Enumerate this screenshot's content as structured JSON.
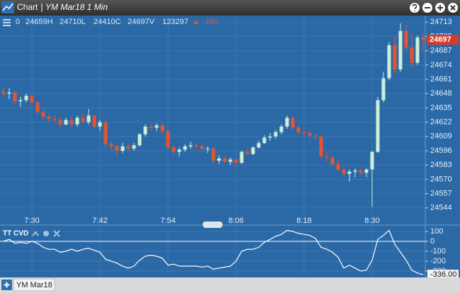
{
  "window_title": "Chart",
  "instrument": "YM Mar18 1 Min",
  "header": {
    "items": [
      "0",
      "24659H",
      "24710L",
      "24410C",
      "24697V",
      "123297"
    ],
    "change": "-150"
  },
  "tab": "YM Mar18",
  "chart_data": [
    {
      "type": "candlestick",
      "categories": [
        null,
        null,
        null,
        null,
        null,
        "7:30",
        null,
        null,
        null,
        null,
        null,
        null,
        null,
        null,
        null,
        null,
        null,
        "7:42",
        null,
        null,
        null,
        null,
        null,
        null,
        null,
        null,
        null,
        null,
        null,
        "7:54",
        null,
        null,
        null,
        null,
        null,
        null,
        null,
        null,
        null,
        null,
        null,
        "8:06",
        null,
        null,
        null,
        null,
        null,
        null,
        null,
        null,
        null,
        null,
        null,
        "8:18",
        null,
        null,
        null,
        null,
        null,
        null,
        null,
        null,
        null,
        null,
        null,
        "8:30",
        null,
        null,
        null,
        null,
        null,
        null,
        null,
        null,
        null
      ],
      "open": [
        24650,
        24648,
        24649,
        24641,
        24642,
        24646,
        24640,
        24631,
        24627,
        24625,
        24624,
        24620,
        24624,
        24620,
        24626,
        24622,
        24628,
        24618,
        24622,
        24602,
        24600,
        24596,
        24600,
        24598,
        24601,
        24611,
        24618,
        24617,
        24619,
        24614,
        24599,
        24595,
        24597,
        24600,
        24601,
        24600,
        24598,
        24598,
        24587,
        24589,
        24586,
        24588,
        24585,
        24595,
        24593,
        24599,
        24603,
        24608,
        24609,
        24613,
        24618,
        24626,
        24617,
        24613,
        24612,
        24610,
        24609,
        24591,
        24590,
        24584,
        24579,
        24575,
        24577,
        24578,
        24576,
        24579,
        24595,
        24642,
        24662,
        24692,
        24670,
        24705,
        24690,
        24676,
        24699
      ],
      "high": [
        24654,
        24653,
        24650,
        24645,
        24648,
        24647,
        24641,
        24633,
        24629,
        24628,
        24626,
        24626,
        24627,
        24628,
        24630,
        24634,
        24629,
        24624,
        24623,
        24605,
        24602,
        24603,
        24602,
        24603,
        24612,
        24620,
        24621,
        24621,
        24621,
        24615,
        24601,
        24599,
        24602,
        24604,
        24603,
        24602,
        24600,
        24599,
        24592,
        24591,
        24590,
        24590,
        24596,
        24598,
        24600,
        24605,
        24610,
        24612,
        24615,
        24620,
        24628,
        24627,
        24619,
        24616,
        24614,
        24612,
        24610,
        24595,
        24591,
        24587,
        24581,
        24579,
        24580,
        24581,
        24580,
        24596,
        24645,
        24668,
        24695,
        24700,
        24712,
        24710,
        24702,
        24701,
        24703
      ],
      "low": [
        24645,
        24643,
        24638,
        24636,
        24640,
        24638,
        24630,
        24625,
        24622,
        24621,
        24617,
        24619,
        24618,
        24618,
        24621,
        24620,
        24616,
        24614,
        24598,
        24596,
        24592,
        24594,
        24596,
        24596,
        24600,
        24609,
        24614,
        24614,
        24612,
        24597,
        24593,
        24591,
        24595,
        24598,
        24598,
        24596,
        24594,
        24585,
        24584,
        24585,
        24583,
        24582,
        24584,
        24592,
        24592,
        24598,
        24602,
        24605,
        24607,
        24611,
        24616,
        24615,
        24611,
        24609,
        24608,
        24606,
        24589,
        24586,
        24582,
        24577,
        24572,
        24568,
        24572,
        24573,
        24572,
        24545,
        24594,
        24640,
        24660,
        24666,
        24668,
        24688,
        24672,
        24674,
        24688
      ],
      "close": [
        24648,
        24649,
        24641,
        24642,
        24646,
        24640,
        24631,
        24627,
        24625,
        24624,
        24620,
        24624,
        24620,
        24626,
        24622,
        24628,
        24618,
        24622,
        24602,
        24600,
        24596,
        24600,
        24598,
        24601,
        24611,
        24618,
        24617,
        24619,
        24614,
        24599,
        24595,
        24597,
        24600,
        24601,
        24600,
        24598,
        24598,
        24587,
        24589,
        24586,
        24588,
        24585,
        24595,
        24593,
        24599,
        24603,
        24608,
        24609,
        24613,
        24618,
        24626,
        24617,
        24613,
        24612,
        24610,
        24609,
        24591,
        24590,
        24584,
        24579,
        24575,
        24577,
        24578,
        24576,
        24579,
        24595,
        24642,
        24662,
        24692,
        24670,
        24705,
        24690,
        24676,
        24699,
        24697
      ],
      "up_color": "#cdeed8",
      "down_color": "#e8532f",
      "ylim": [
        24540,
        24719
      ],
      "yticks": [
        24713,
        24700,
        24687,
        24674,
        24661,
        24648,
        24635,
        24622,
        24609,
        24596,
        24583,
        24570,
        24557,
        24544
      ],
      "grid": true
    },
    {
      "type": "line",
      "title": "TT CVD",
      "color": "#ffffff",
      "values": [
        0,
        20,
        -20,
        -10,
        -20,
        0,
        -20,
        -60,
        -80,
        -80,
        -110,
        -100,
        -80,
        -100,
        -80,
        -70,
        -90,
        -110,
        -180,
        -200,
        -220,
        -250,
        -270,
        -250,
        -190,
        -150,
        -140,
        -150,
        -170,
        -240,
        -230,
        -250,
        -250,
        -250,
        -250,
        -260,
        -250,
        -280,
        -270,
        -260,
        -250,
        -200,
        -100,
        -80,
        -80,
        -60,
        -10,
        20,
        50,
        70,
        110,
        100,
        80,
        70,
        60,
        30,
        -60,
        -80,
        -110,
        -160,
        -270,
        -240,
        -270,
        -300,
        -290,
        -190,
        20,
        60,
        110,
        -30,
        -110,
        -190,
        -290,
        -320,
        -336
      ],
      "last_value_label": "-336.00",
      "ylim": [
        -364,
        164
      ],
      "yticks": [
        100,
        0,
        -100,
        -200,
        -300
      ],
      "grid": true
    }
  ]
}
